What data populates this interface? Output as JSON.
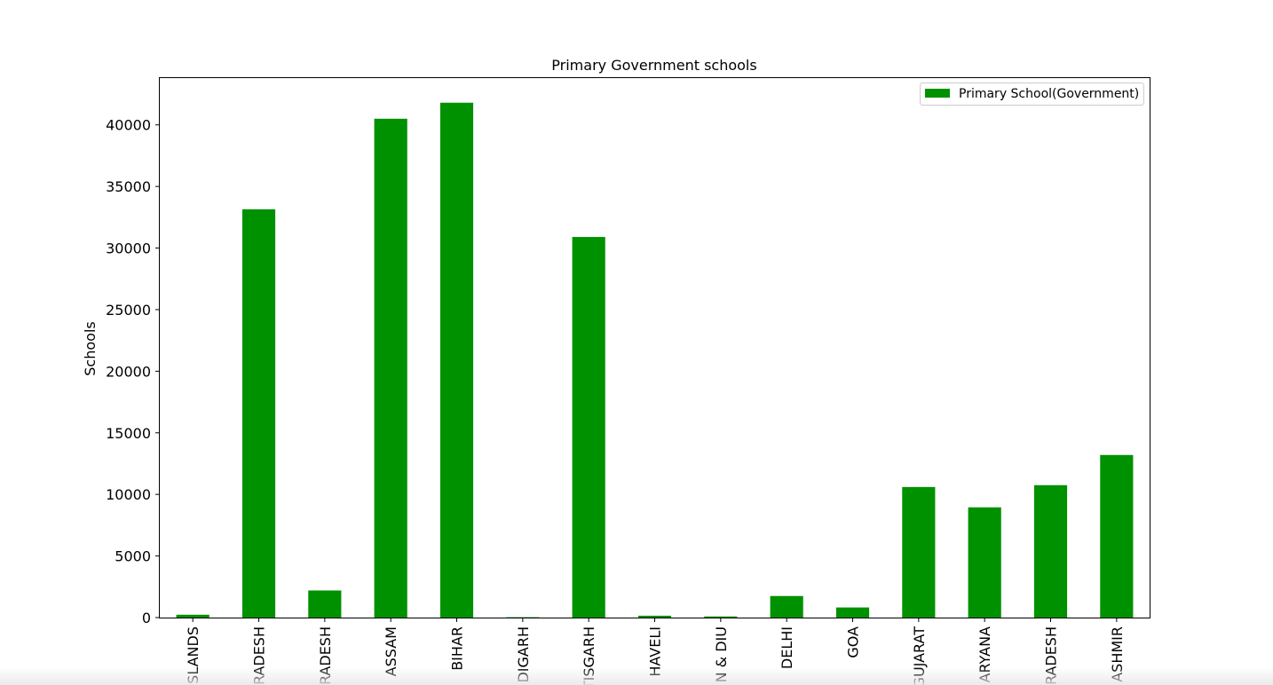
{
  "chart_data": {
    "type": "bar",
    "title": "Primary Government schools",
    "xlabel": "",
    "ylabel": "Schools",
    "categories": [
      "ISLANDS",
      "RADESH",
      "RADESH",
      "ASSAM",
      "BIHAR",
      "DIGARH",
      "TISGARH",
      "HAVELI",
      "N & DIU",
      "DELHI",
      "GOA",
      "GUJARAT",
      "ARYANA",
      "RADESH",
      "ASHMIR"
    ],
    "series": [
      {
        "name": "Primary School(Government)",
        "color": "#009100",
        "values": [
          230,
          33150,
          2200,
          40500,
          41800,
          30,
          30900,
          150,
          90,
          1750,
          820,
          10600,
          8950,
          10750,
          13200
        ]
      }
    ],
    "ylim": [
      0,
      43800
    ],
    "yticks": [
      0,
      5000,
      10000,
      15000,
      20000,
      25000,
      30000,
      35000,
      40000
    ],
    "grid": false,
    "legend": "top-right"
  }
}
